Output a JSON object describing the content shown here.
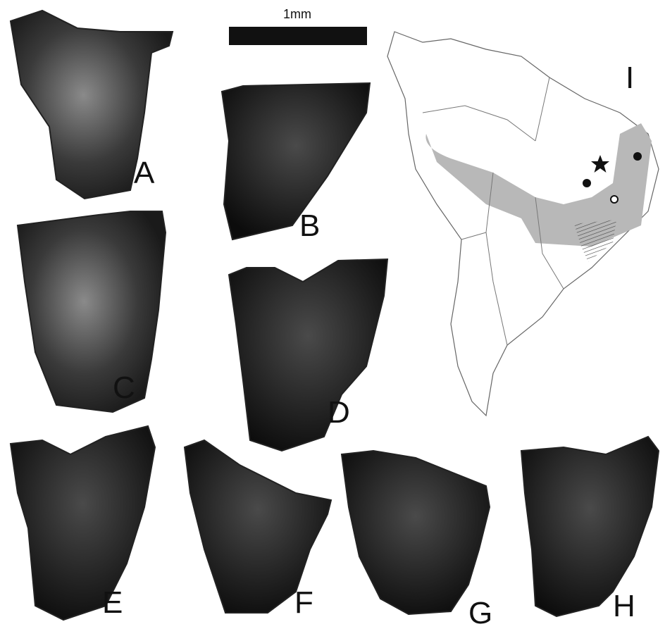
{
  "scale_bar": {
    "label": "1mm"
  },
  "panels": [
    {
      "label": "A"
    },
    {
      "label": "B"
    },
    {
      "label": "C"
    },
    {
      "label": "D"
    },
    {
      "label": "E"
    },
    {
      "label": "F"
    },
    {
      "label": "G"
    },
    {
      "label": "H"
    }
  ],
  "map": {
    "label": "I"
  }
}
